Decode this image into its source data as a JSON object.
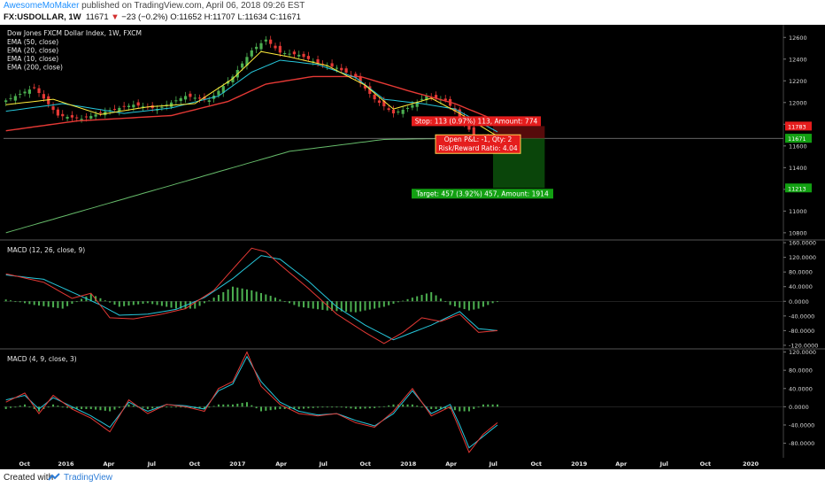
{
  "header": {
    "author": "AwesomeMoMaker",
    "published": " published on TradingView.com, April 06, 2018 09:26 EST",
    "symbol": "FX:USDOLLAR, 1W",
    "last": "11671",
    "change": "−23 (−0.2%)",
    "ohlc": "O:11652 H:11707 L:11634 C:11671"
  },
  "footer": {
    "created": "Created with",
    "brand": "TradingView"
  },
  "colors": {
    "up": "#4caf50",
    "down": "#e53935",
    "ema50": "#e53935",
    "ema20": "#26c6da",
    "ema10": "#ffeb3b",
    "ema200": "#66bb6a",
    "stop": "#e51d1d",
    "target": "#12a012"
  },
  "chart_data": [
    {
      "type": "line",
      "title": "Dow Jones FXCM Dollar Index, 1W, FXCM",
      "legend": [
        "EMA (50, close)",
        "EMA (20, close)",
        "EMA (10, close)",
        "EMA (200, close)"
      ],
      "x_ticks": [
        "Oct",
        "2016",
        "Apr",
        "Jul",
        "Oct",
        "2017",
        "Apr",
        "Jul",
        "Oct",
        "2018",
        "Apr",
        "Jul",
        "Oct",
        "2019",
        "Apr",
        "Jul",
        "Oct",
        "2020"
      ],
      "y_ticks": [
        "12600",
        "12400",
        "12200",
        "12000",
        "11800",
        "11600",
        "11400",
        "11200",
        "11000",
        "10800"
      ],
      "ylim": [
        10750,
        12700
      ],
      "close_waypoints": [
        [
          0,
          12020
        ],
        [
          6,
          12140
        ],
        [
          11,
          11880
        ],
        [
          16,
          11850
        ],
        [
          22,
          11930
        ],
        [
          27,
          11980
        ],
        [
          32,
          11940
        ],
        [
          38,
          12060
        ],
        [
          43,
          12020
        ],
        [
          48,
          12240
        ],
        [
          52,
          12480
        ],
        [
          55,
          12580
        ],
        [
          58,
          12460
        ],
        [
          62,
          12440
        ],
        [
          66,
          12360
        ],
        [
          70,
          12320
        ],
        [
          74,
          12230
        ],
        [
          78,
          12030
        ],
        [
          82,
          11900
        ],
        [
          85,
          11950
        ],
        [
          89,
          12060
        ],
        [
          93,
          12020
        ],
        [
          96,
          11870
        ],
        [
          99,
          11690
        ],
        [
          102,
          11650
        ],
        [
          104,
          11671
        ]
      ],
      "ema50": [
        [
          0,
          11740
        ],
        [
          15,
          11830
        ],
        [
          35,
          11880
        ],
        [
          47,
          12010
        ],
        [
          55,
          12170
        ],
        [
          65,
          12240
        ],
        [
          75,
          12240
        ],
        [
          85,
          12110
        ],
        [
          95,
          11990
        ],
        [
          104,
          11830
        ]
      ],
      "ema20": [
        [
          0,
          11920
        ],
        [
          12,
          11990
        ],
        [
          25,
          11900
        ],
        [
          35,
          11950
        ],
        [
          45,
          12060
        ],
        [
          52,
          12280
        ],
        [
          58,
          12390
        ],
        [
          66,
          12350
        ],
        [
          74,
          12230
        ],
        [
          80,
          12030
        ],
        [
          88,
          11990
        ],
        [
          95,
          11940
        ],
        [
          104,
          11730
        ]
      ],
      "ema10": [
        [
          0,
          11980
        ],
        [
          10,
          12030
        ],
        [
          20,
          11890
        ],
        [
          30,
          11960
        ],
        [
          40,
          11990
        ],
        [
          48,
          12220
        ],
        [
          54,
          12470
        ],
        [
          60,
          12420
        ],
        [
          68,
          12340
        ],
        [
          76,
          12160
        ],
        [
          82,
          11940
        ],
        [
          90,
          12040
        ],
        [
          96,
          11900
        ],
        [
          104,
          11690
        ]
      ],
      "ema200": [
        [
          0,
          10800
        ],
        [
          40,
          11300
        ],
        [
          60,
          11550
        ],
        [
          80,
          11660
        ],
        [
          104,
          11675
        ]
      ],
      "tags": [
        {
          "label": "11783",
          "value": 11783,
          "color": "#e51d1d"
        },
        {
          "label": "11670",
          "value": 11670,
          "color": "#333333"
        },
        {
          "label": "11671",
          "value": 11671,
          "color": "#12a012"
        },
        {
          "label": "11213",
          "value": 11213,
          "color": "#12a012"
        }
      ],
      "position": {
        "stop_text": "Stop: 113 (0.97%) 113, Amount: 774",
        "pnl_text": "Open P&L: -1, Qty: 2",
        "rr_text": "Risk/Reward Ratio: 4.04",
        "target_text": "Target: 457 (3.92%) 457, Amount: 1914",
        "entry": 11670,
        "stop": 11783,
        "target": 11213
      }
    },
    {
      "type": "line",
      "title": "MACD (12, 26, close, 9)",
      "y_ticks": [
        "160.0000",
        "120.0000",
        "80.0000",
        "40.0000",
        "0.0000",
        "-40.0000",
        "-80.0000",
        "-120.0000"
      ],
      "ylim": [
        -125,
        165
      ],
      "macd": [
        [
          0,
          75
        ],
        [
          8,
          52
        ],
        [
          14,
          8
        ],
        [
          18,
          22
        ],
        [
          22,
          -45
        ],
        [
          27,
          -48
        ],
        [
          33,
          -35
        ],
        [
          38,
          -20
        ],
        [
          44,
          30
        ],
        [
          48,
          88
        ],
        [
          52,
          145
        ],
        [
          55,
          135
        ],
        [
          58,
          100
        ],
        [
          64,
          35
        ],
        [
          70,
          -35
        ],
        [
          76,
          -85
        ],
        [
          80,
          -115
        ],
        [
          84,
          -85
        ],
        [
          88,
          -45
        ],
        [
          92,
          -55
        ],
        [
          96,
          -35
        ],
        [
          100,
          -85
        ],
        [
          104,
          -80
        ]
      ],
      "signal": [
        [
          0,
          72
        ],
        [
          8,
          60
        ],
        [
          14,
          25
        ],
        [
          20,
          -10
        ],
        [
          24,
          -38
        ],
        [
          30,
          -35
        ],
        [
          36,
          -22
        ],
        [
          42,
          10
        ],
        [
          48,
          62
        ],
        [
          54,
          125
        ],
        [
          58,
          115
        ],
        [
          64,
          55
        ],
        [
          70,
          -15
        ],
        [
          76,
          -65
        ],
        [
          82,
          -105
        ],
        [
          86,
          -85
        ],
        [
          90,
          -65
        ],
        [
          96,
          -28
        ],
        [
          100,
          -75
        ],
        [
          104,
          -80
        ]
      ],
      "histogram": [
        [
          0,
          5
        ],
        [
          6,
          -10
        ],
        [
          12,
          -20
        ],
        [
          18,
          20
        ],
        [
          24,
          -15
        ],
        [
          30,
          -5
        ],
        [
          36,
          -20
        ],
        [
          40,
          -20
        ],
        [
          44,
          10
        ],
        [
          48,
          40
        ],
        [
          52,
          30
        ],
        [
          56,
          15
        ],
        [
          62,
          -15
        ],
        [
          68,
          -25
        ],
        [
          74,
          -30
        ],
        [
          80,
          -15
        ],
        [
          86,
          10
        ],
        [
          90,
          25
        ],
        [
          94,
          -10
        ],
        [
          98,
          -25
        ],
        [
          100,
          -20
        ],
        [
          104,
          0
        ]
      ]
    },
    {
      "type": "line",
      "title": "MACD (4, 9, close, 3)",
      "y_ticks": [
        "120.0000",
        "80.0000",
        "40.0000",
        "0.0000",
        "-40.0000",
        "-80.0000"
      ],
      "ylim": [
        -110,
        125
      ],
      "macd": [
        [
          0,
          10
        ],
        [
          4,
          30
        ],
        [
          7,
          -15
        ],
        [
          10,
          25
        ],
        [
          14,
          -5
        ],
        [
          18,
          -25
        ],
        [
          22,
          -55
        ],
        [
          26,
          15
        ],
        [
          30,
          -15
        ],
        [
          34,
          5
        ],
        [
          38,
          0
        ],
        [
          42,
          -10
        ],
        [
          45,
          40
        ],
        [
          48,
          55
        ],
        [
          51,
          120
        ],
        [
          54,
          45
        ],
        [
          58,
          5
        ],
        [
          62,
          -15
        ],
        [
          66,
          -20
        ],
        [
          70,
          -15
        ],
        [
          74,
          -35
        ],
        [
          78,
          -45
        ],
        [
          82,
          -10
        ],
        [
          86,
          40
        ],
        [
          90,
          -20
        ],
        [
          94,
          0
        ],
        [
          96,
          -50
        ],
        [
          98,
          -100
        ],
        [
          101,
          -60
        ],
        [
          104,
          -35
        ]
      ],
      "signal": [
        [
          0,
          15
        ],
        [
          4,
          25
        ],
        [
          7,
          -5
        ],
        [
          10,
          20
        ],
        [
          14,
          0
        ],
        [
          18,
          -20
        ],
        [
          22,
          -45
        ],
        [
          26,
          10
        ],
        [
          30,
          -10
        ],
        [
          34,
          5
        ],
        [
          38,
          2
        ],
        [
          42,
          -5
        ],
        [
          45,
          35
        ],
        [
          48,
          50
        ],
        [
          51,
          110
        ],
        [
          54,
          55
        ],
        [
          58,
          10
        ],
        [
          62,
          -10
        ],
        [
          66,
          -18
        ],
        [
          70,
          -15
        ],
        [
          74,
          -30
        ],
        [
          78,
          -42
        ],
        [
          82,
          -15
        ],
        [
          86,
          35
        ],
        [
          90,
          -15
        ],
        [
          94,
          5
        ],
        [
          96,
          -40
        ],
        [
          98,
          -90
        ],
        [
          101,
          -65
        ],
        [
          104,
          -40
        ]
      ],
      "histogram": [
        [
          0,
          -5
        ],
        [
          4,
          5
        ],
        [
          7,
          -10
        ],
        [
          10,
          5
        ],
        [
          14,
          -5
        ],
        [
          18,
          -5
        ],
        [
          22,
          -10
        ],
        [
          26,
          5
        ],
        [
          30,
          -5
        ],
        [
          34,
          0
        ],
        [
          38,
          -2
        ],
        [
          42,
          -5
        ],
        [
          45,
          5
        ],
        [
          48,
          5
        ],
        [
          51,
          10
        ],
        [
          54,
          -10
        ],
        [
          58,
          -5
        ],
        [
          62,
          -5
        ],
        [
          66,
          -2
        ],
        [
          70,
          0
        ],
        [
          74,
          -5
        ],
        [
          78,
          -3
        ],
        [
          82,
          5
        ],
        [
          86,
          5
        ],
        [
          90,
          -5
        ],
        [
          94,
          -5
        ],
        [
          96,
          -10
        ],
        [
          98,
          -10
        ],
        [
          101,
          5
        ],
        [
          104,
          5
        ]
      ]
    }
  ]
}
